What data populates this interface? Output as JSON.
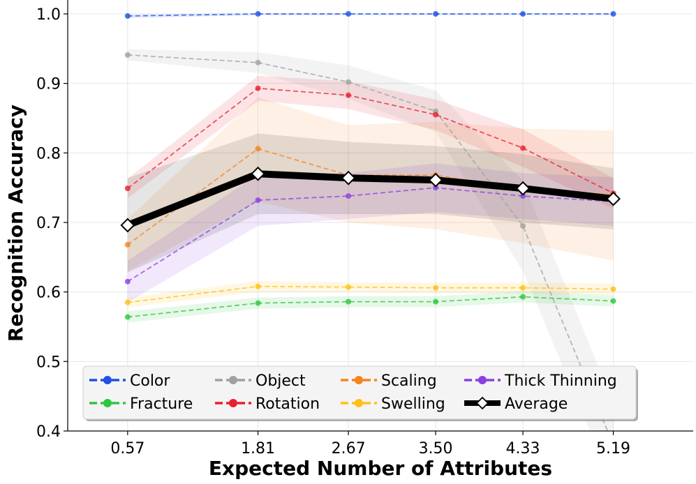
{
  "chart_data": {
    "type": "line",
    "xlabel": "Expected Number of Attributes",
    "ylabel": "Recognition Accuracy",
    "x_tick_labels": [
      "0.57",
      "1.81",
      "2.67",
      "3.50",
      "4.33",
      "5.19"
    ],
    "x": [
      0.57,
      1.81,
      2.67,
      3.5,
      4.33,
      5.19
    ],
    "xlim": [
      0.0,
      5.95
    ],
    "ylim": [
      0.4,
      1.02
    ],
    "y_ticks": [
      0.4,
      0.5,
      0.6,
      0.7,
      0.8,
      0.9,
      1.0
    ],
    "y_tick_labels": [
      "0.4",
      "0.5",
      "0.6",
      "0.7",
      "0.8",
      "0.9",
      "1.0"
    ],
    "grid": true,
    "legend_position": "bottom-left",
    "series": [
      {
        "name": "Color",
        "color": "#1f4fe6",
        "style": "dashed",
        "marker": "circle",
        "values": [
          0.997,
          1.0,
          1.0,
          1.0,
          1.0,
          1.0
        ],
        "lower": [
          0.994,
          0.998,
          0.998,
          0.998,
          0.998,
          0.998
        ],
        "upper": [
          0.999,
          1.001,
          1.001,
          1.001,
          1.001,
          1.001
        ]
      },
      {
        "name": "Object",
        "color": "#a0a0a0",
        "style": "dashed",
        "marker": "circle",
        "values": [
          0.941,
          0.93,
          0.902,
          0.86,
          0.695,
          0.38
        ],
        "lower": [
          0.933,
          0.915,
          0.878,
          0.83,
          0.63,
          0.32
        ],
        "upper": [
          0.949,
          0.945,
          0.926,
          0.89,
          0.76,
          0.44
        ]
      },
      {
        "name": "Scaling",
        "color": "#f5831f",
        "style": "dashed",
        "marker": "circle",
        "values": [
          0.668,
          0.806,
          0.768,
          0.768,
          0.748,
          0.74
        ],
        "lower": [
          0.63,
          0.73,
          0.7,
          0.69,
          0.67,
          0.645
        ],
        "upper": [
          0.705,
          0.88,
          0.84,
          0.845,
          0.835,
          0.832
        ]
      },
      {
        "name": "Thick Thinning",
        "color": "#8a3fe0",
        "style": "dashed",
        "marker": "circle",
        "values": [
          0.615,
          0.732,
          0.738,
          0.75,
          0.738,
          0.73
        ],
        "lower": [
          0.585,
          0.695,
          0.705,
          0.715,
          0.705,
          0.695
        ],
        "upper": [
          0.645,
          0.769,
          0.771,
          0.785,
          0.771,
          0.765
        ]
      },
      {
        "name": "Fracture",
        "color": "#2ec640",
        "style": "dashed",
        "marker": "circle",
        "values": [
          0.564,
          0.584,
          0.586,
          0.586,
          0.593,
          0.587
        ],
        "lower": [
          0.556,
          0.576,
          0.578,
          0.578,
          0.585,
          0.579
        ],
        "upper": [
          0.572,
          0.592,
          0.594,
          0.594,
          0.601,
          0.595
        ]
      },
      {
        "name": "Rotation",
        "color": "#e8202e",
        "style": "dashed",
        "marker": "circle",
        "values": [
          0.749,
          0.893,
          0.883,
          0.855,
          0.807,
          0.742
        ],
        "lower": [
          0.735,
          0.875,
          0.863,
          0.833,
          0.78,
          0.72
        ],
        "upper": [
          0.763,
          0.911,
          0.903,
          0.877,
          0.834,
          0.764
        ]
      },
      {
        "name": "Swelling",
        "color": "#ffc012",
        "style": "dashed",
        "marker": "circle",
        "values": [
          0.585,
          0.608,
          0.607,
          0.606,
          0.606,
          0.604
        ],
        "lower": [
          0.578,
          0.6,
          0.6,
          0.598,
          0.598,
          0.596
        ],
        "upper": [
          0.592,
          0.616,
          0.614,
          0.614,
          0.614,
          0.612
        ]
      },
      {
        "name": "Average",
        "color": "#000000",
        "style": "solid",
        "marker": "diamond",
        "values": [
          0.696,
          0.77,
          0.764,
          0.761,
          0.749,
          0.734
        ],
        "lower": [
          0.628,
          0.712,
          0.712,
          0.712,
          0.7,
          0.69
        ],
        "upper": [
          0.764,
          0.828,
          0.816,
          0.81,
          0.798,
          0.778
        ]
      }
    ],
    "legend_order": [
      "Color",
      "Object",
      "Scaling",
      "Thick Thinning",
      "Fracture",
      "Rotation",
      "Swelling",
      "Average"
    ]
  }
}
